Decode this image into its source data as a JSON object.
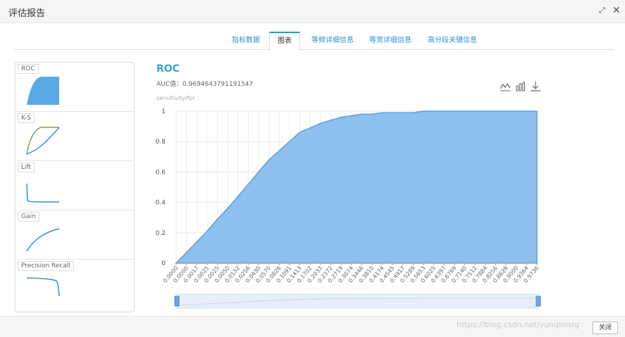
{
  "dialog": {
    "title": "评估报告",
    "expand_icon": "expand-icon",
    "close_icon": "close-icon",
    "close_button_label": "关闭"
  },
  "tabs": [
    {
      "label": "指标数据",
      "active": false
    },
    {
      "label": "图表",
      "active": true
    },
    {
      "label": "等频详细信息",
      "active": false
    },
    {
      "label": "等宽详细信息",
      "active": false
    },
    {
      "label": "高分段关键信息",
      "active": false
    }
  ],
  "thumbnails": [
    {
      "label": "ROC"
    },
    {
      "label": "K-S"
    },
    {
      "label": "Lift"
    },
    {
      "label": "Gain"
    },
    {
      "label": "Precision Recall"
    }
  ],
  "toolbox": {
    "line_icon": "line-chart-icon",
    "bar_icon": "bar-chart-icon",
    "download_icon": "download-icon"
  },
  "watermark": "https://blog.csdn.net/yunqiinsig",
  "colors": {
    "accent": "#2f8fd6",
    "area_fill": "#8dc0ee",
    "area_line": "#5a9fe0"
  },
  "chart_data": {
    "type": "area",
    "title": "ROC",
    "subtitle": "AUC值：0.9694643791191547",
    "ylabel": "sensitivity/fpr",
    "xlabel": "",
    "ylim": [
      0,
      1
    ],
    "yticks": [
      "0",
      "0.2",
      "0.4",
      "0.6",
      "0.8",
      "1"
    ],
    "grid": true,
    "x": [
      "0.0000",
      "0.0000",
      "0.0017",
      "0.0025",
      "0.0025",
      "0.0050",
      "0.0132",
      "0.0256",
      "0.0430",
      "0.0570",
      "0.0826",
      "0.1091",
      "0.1413",
      "0.1702",
      "0.2033",
      "0.2372",
      "0.2719",
      "0.3074",
      "0.3446",
      "0.3810",
      "0.4174",
      "0.4545",
      "0.4917",
      "0.5289",
      "0.5653",
      "0.6025",
      "0.6397",
      "0.6769",
      "0.7140",
      "0.7512",
      "0.7884",
      "0.8256",
      "0.8628",
      "0.9000",
      "0.9364",
      "0.9736"
    ],
    "series": [
      {
        "values": [
          0.0,
          0.07,
          0.14,
          0.21,
          0.29,
          0.36,
          0.44,
          0.52,
          0.6,
          0.68,
          0.74,
          0.8,
          0.86,
          0.89,
          0.92,
          0.94,
          0.96,
          0.97,
          0.98,
          0.98,
          0.99,
          0.99,
          0.99,
          0.99,
          1.0,
          1.0,
          1.0,
          1.0,
          1.0,
          1.0,
          1.0,
          1.0,
          1.0,
          1.0,
          1.0,
          1.0
        ]
      }
    ],
    "datazoom": {
      "start": 0,
      "end": 100
    }
  }
}
